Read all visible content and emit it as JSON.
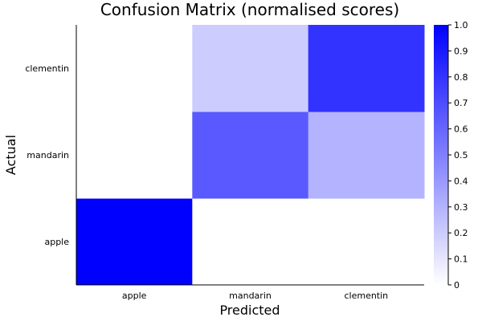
{
  "chart_data": {
    "type": "heatmap",
    "title": "Confusion Matrix (normalised scores)",
    "xlabel": "Predicted",
    "ylabel": "Actual",
    "x_categories": [
      "apple",
      "mandarin",
      "clementin"
    ],
    "y_categories": [
      "apple",
      "mandarin",
      "clementin"
    ],
    "values": [
      [
        1.0,
        0.0,
        0.0
      ],
      [
        0.0,
        0.65,
        0.3
      ],
      [
        0.0,
        0.2,
        0.8
      ]
    ],
    "colorbar": {
      "range": [
        0,
        1
      ],
      "ticks": [
        "0",
        "0.1",
        "0.2",
        "0.3",
        "0.4",
        "0.5",
        "0.6",
        "0.7",
        "0.8",
        "0.9",
        "1.0"
      ],
      "color_low": "#ffffff",
      "color_high": "#0000ff"
    },
    "grid": false
  }
}
